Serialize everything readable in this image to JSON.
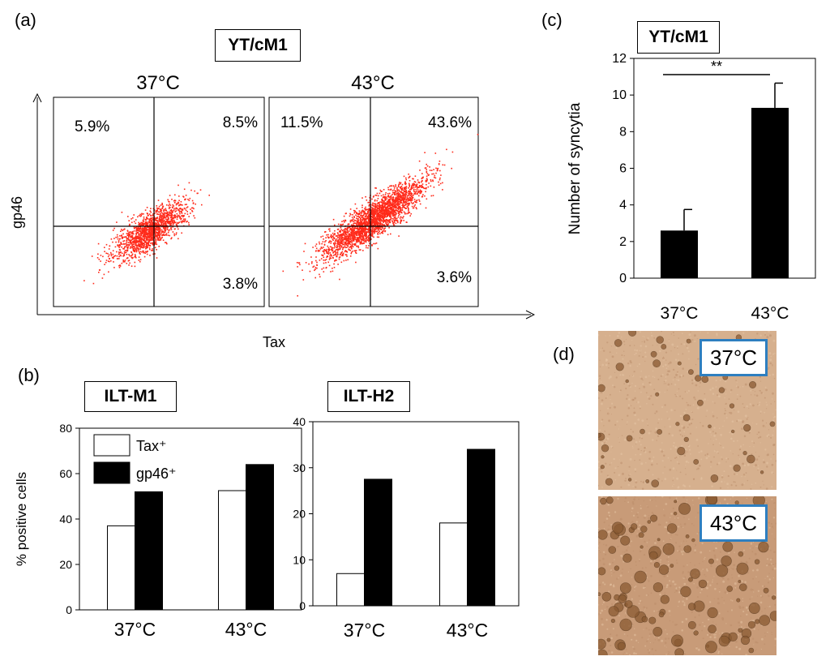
{
  "panel_letters": {
    "a": "(a)",
    "b": "(b)",
    "c": "(c)",
    "d": "(d)"
  },
  "colors": {
    "dot": "#ff2a1a",
    "bar_fill": "#000000",
    "bar_open": "#ffffff",
    "label_border": "#2e7fc0",
    "micro_37": "#d6b08e",
    "micro_43": "#c89b78"
  },
  "panel_a": {
    "title": "YT/cM1",
    "xlabel": "Tax",
    "ylabel": "gp46",
    "plots": [
      {
        "temp": "37°C",
        "q_ul": "5.9%",
        "q_ur": "8.5%",
        "q_lr": "3.8%",
        "spread": 0.7
      },
      {
        "temp": "43°C",
        "q_ul": "11.5%",
        "q_ur": "43.6%",
        "q_lr": "3.6%",
        "spread": 1.0
      }
    ]
  },
  "chart_data": [
    {
      "type": "bar",
      "title": "ILT-M1",
      "ylabel": "% positive cells",
      "categories": [
        "37°C",
        "43°C"
      ],
      "ylim": [
        0,
        80
      ],
      "yticks": [
        0,
        20,
        40,
        60,
        80
      ],
      "series": [
        {
          "name": "Tax⁺",
          "values": [
            37,
            52.5
          ]
        },
        {
          "name": "gp46⁺",
          "values": [
            52,
            64
          ]
        }
      ],
      "legend": "top-left"
    },
    {
      "type": "bar",
      "title": "ILT-H2",
      "categories": [
        "37°C",
        "43°C"
      ],
      "ylim": [
        0,
        40
      ],
      "yticks": [
        0,
        10,
        20,
        30,
        40
      ],
      "series": [
        {
          "name": "Tax⁺",
          "values": [
            7,
            18
          ]
        },
        {
          "name": "gp46⁺",
          "values": [
            27.5,
            34
          ]
        }
      ]
    },
    {
      "type": "bar",
      "title": "YT/cM1",
      "ylabel": "Number of syncytia",
      "categories": [
        "37°C",
        "43°C"
      ],
      "ylim": [
        0,
        12
      ],
      "yticks": [
        0,
        2,
        4,
        6,
        8,
        10,
        12
      ],
      "values": [
        2.6,
        9.3
      ],
      "errors": [
        1.15,
        1.35
      ],
      "significance": "**"
    }
  ],
  "panel_d": {
    "labels": [
      "37°C",
      "43°C"
    ]
  }
}
